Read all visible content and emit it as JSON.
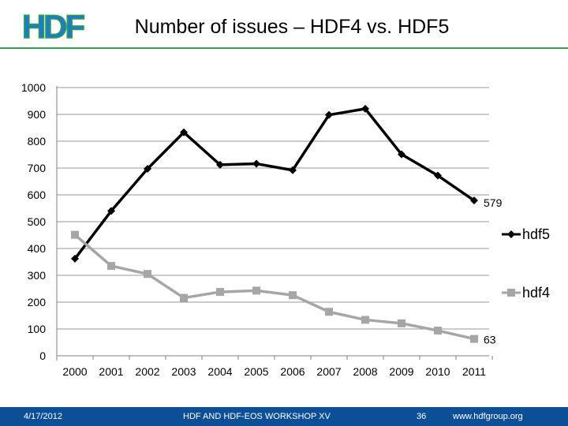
{
  "slide": {
    "title": "Number of issues – HDF4 vs. HDF5",
    "logo_text": "HDF"
  },
  "footer": {
    "date": "4/17/2012",
    "center": "HDF AND HDF-EOS WORKSHOP XV",
    "page_number": "36",
    "url": "www.hdfgroup.org"
  },
  "colors": {
    "accent_green": "#2f9e50",
    "logo_blue": "#1f7cc4",
    "footer_blue": "#0d4f97",
    "hdf5_line": "#000000",
    "hdf4_line": "#a6a6a6",
    "gridline": "#9a9a9a"
  },
  "chart_data": {
    "type": "line",
    "title": "",
    "xlabel": "",
    "ylabel": "",
    "categories": [
      "2000",
      "2001",
      "2002",
      "2003",
      "2004",
      "2005",
      "2006",
      "2007",
      "2008",
      "2009",
      "2010",
      "2011"
    ],
    "ylim": [
      0,
      1000
    ],
    "yticks": [
      "0",
      "100",
      "200",
      "300",
      "400",
      "500",
      "600",
      "700",
      "800",
      "900",
      "1000"
    ],
    "grid": true,
    "legend_position": "right",
    "series": [
      {
        "name": "hdf5",
        "marker": "diamond",
        "color": "#000000",
        "values": [
          362,
          540,
          697,
          833,
          712,
          716,
          692,
          898,
          921,
          751,
          672,
          579
        ],
        "end_label": "579"
      },
      {
        "name": "hdf4",
        "marker": "square",
        "color": "#a6a6a6",
        "values": [
          451,
          335,
          305,
          216,
          238,
          243,
          226,
          164,
          134,
          121,
          94,
          63
        ],
        "end_label": "63"
      }
    ]
  }
}
